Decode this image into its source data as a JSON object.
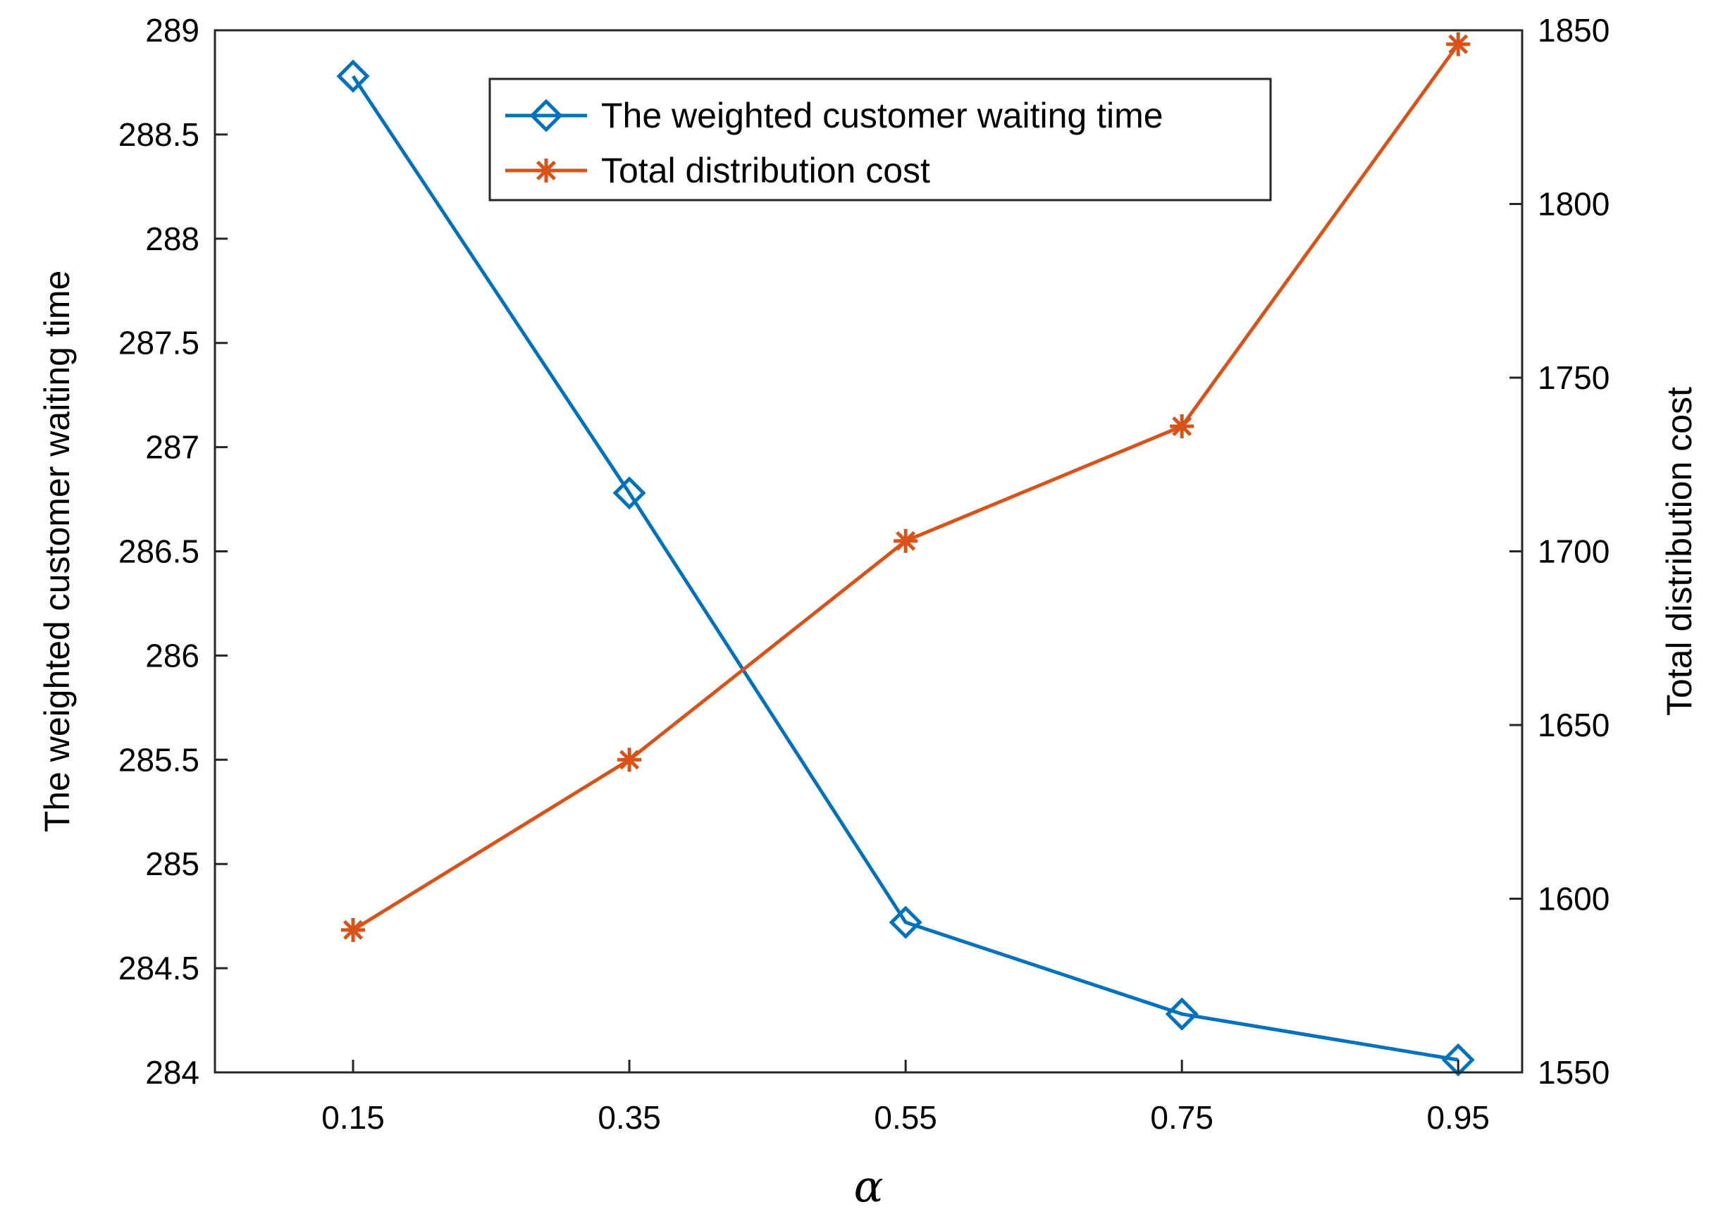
{
  "chart_data": {
    "type": "line",
    "title": "",
    "xlabel": "α",
    "categories": [
      "0.15",
      "0.35",
      "0.55",
      "0.75",
      "0.95"
    ],
    "x": [
      0.15,
      0.35,
      0.55,
      0.75,
      0.95
    ],
    "xlim": [
      0.05,
      0.9963
    ],
    "axes": {
      "left": {
        "label": "The weighted customer waiting time",
        "ylim": [
          284,
          289
        ],
        "ticks": [
          "284",
          "284.5",
          "285",
          "285.5",
          "286",
          "286.5",
          "287",
          "287.5",
          "288",
          "288.5",
          "289"
        ]
      },
      "right": {
        "label": "Total distribution cost",
        "ylim": [
          1550,
          1850
        ],
        "ticks": [
          "1550",
          "1600",
          "1650",
          "1700",
          "1750",
          "1800",
          "1850"
        ]
      }
    },
    "series": [
      {
        "name": "The weighted customer waiting time",
        "axis": "left",
        "color": "#0072BD",
        "marker": "diamond",
        "values": [
          288.78,
          286.78,
          284.72,
          284.28,
          284.06
        ]
      },
      {
        "name": "Total distribution cost",
        "axis": "right",
        "color": "#D95319",
        "marker": "asterisk",
        "values": [
          1591,
          1640,
          1703,
          1736,
          1846
        ]
      }
    ],
    "legend": {
      "position": "top-center",
      "entries": [
        "The weighted customer waiting time",
        "Total distribution cost"
      ]
    },
    "grid": false
  }
}
